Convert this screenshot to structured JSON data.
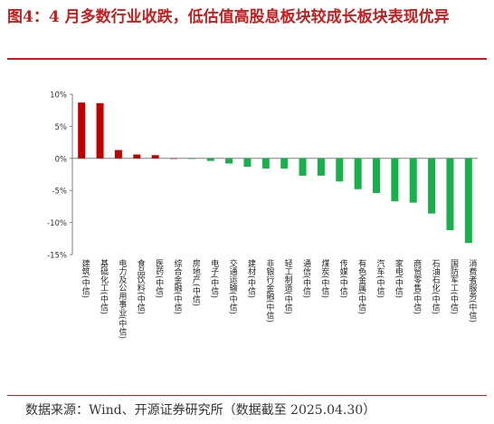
{
  "figure": {
    "title": "图4：4 月多数行业收跌，低估值高股息板块较成长板块表现优异",
    "source": "数据来源：Wind、开源证券研究所（数据截至 2025.04.30）"
  },
  "colors": {
    "positive": "#c00000",
    "negative": "#18b04a",
    "title": "#c41f1f"
  },
  "chart_data": {
    "type": "bar",
    "title": "",
    "xlabel": "",
    "ylabel": "",
    "ylim": [
      -15,
      10
    ],
    "yticks": [
      10,
      5,
      0,
      -5,
      -10,
      -15
    ],
    "ytick_labels": [
      "10%",
      "5%",
      "0%",
      "-5%",
      "-10%",
      "-15%"
    ],
    "grid": false,
    "categories": [
      "建筑(中信)",
      "基础化工(中信)",
      "电力及公用事业(中信)",
      "食品饮料(中信)",
      "医药(中信)",
      "综合金融(中信)",
      "房地产(中信)",
      "电子(中信)",
      "交通运输(中信)",
      "建材(中信)",
      "非银行金融(中信)",
      "轻工制造(中信)",
      "通信(中信)",
      "煤炭(中信)",
      "传媒(中信)",
      "有色金属(中信)",
      "汽车(中信)",
      "家电(中信)",
      "商贸零售(中信)",
      "石油石化(中信)",
      "国防军工(中信)",
      "消费者服务(中信)"
    ],
    "values": [
      8.7,
      8.6,
      1.3,
      0.6,
      0.5,
      0.0,
      -0.1,
      -0.4,
      -0.8,
      -1.3,
      -1.6,
      -1.6,
      -2.7,
      -2.7,
      -3.6,
      -4.8,
      -5.4,
      -6.7,
      -6.9,
      -8.6,
      -11.2,
      -13.2
    ]
  }
}
